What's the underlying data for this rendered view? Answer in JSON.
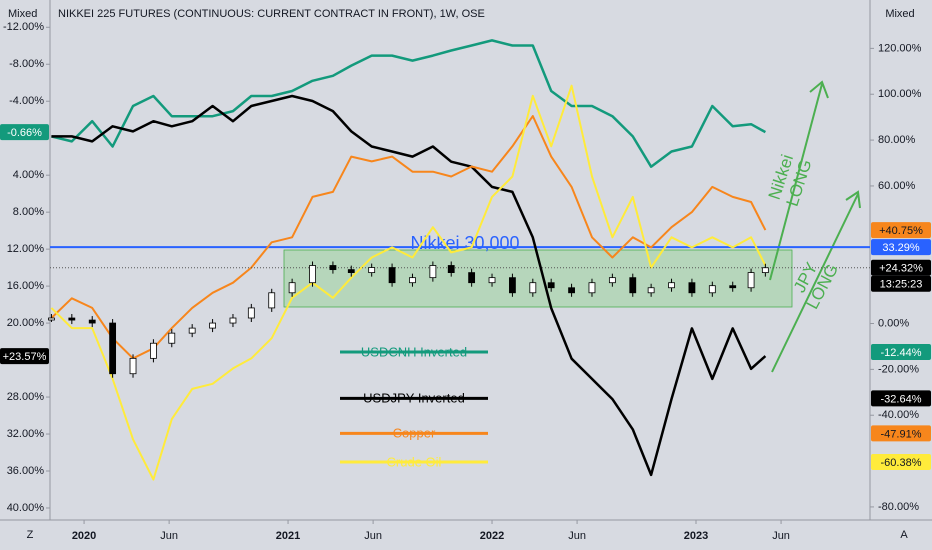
{
  "chart_data": {
    "type": "line",
    "title": "NIKKEI 225 FUTURES (CONTINUOUS: CURRENT CONTRACT IN FRONT), 1W, OSE",
    "left_axis_mode": "Mixed",
    "right_axis_mode": "Mixed",
    "corner_left": "Z",
    "corner_right": "A",
    "x": [
      2019.84,
      2019.94,
      2020.04,
      2020.14,
      2020.24,
      2020.34,
      2020.43,
      2020.53,
      2020.63,
      2020.73,
      2020.82,
      2020.92,
      2021.02,
      2021.12,
      2021.22,
      2021.31,
      2021.41,
      2021.51,
      2021.61,
      2021.71,
      2021.8,
      2021.9,
      2022.0,
      2022.1,
      2022.2,
      2022.29,
      2022.39,
      2022.49,
      2022.59,
      2022.69,
      2022.78,
      2022.88,
      2022.98,
      2023.08,
      2023.18,
      2023.27,
      2023.34
    ],
    "xlim": [
      2019.833,
      2023.853
    ],
    "xticks": [
      2020,
      {
        "value": 2020.417,
        "label": "Jun"
      },
      2021,
      {
        "value": 2021.417,
        "label": "Jun"
      },
      2022,
      {
        "value": 2022.417,
        "label": "Jun"
      },
      2023,
      {
        "value": 2023.417,
        "label": "Jun"
      }
    ],
    "ylim": [
      41.3,
      -14.95
    ],
    "yticks": [
      {
        "value": -12,
        "label": "-12.00%"
      },
      {
        "value": -8,
        "label": "-8.00%"
      },
      {
        "value": -4,
        "label": "-4.00%"
      },
      {
        "value": 4,
        "label": "4.00%"
      },
      {
        "value": 8,
        "label": "8.00%"
      },
      {
        "value": 12,
        "label": "12.00%"
      },
      {
        "value": 16,
        "label": "16.00%"
      },
      {
        "value": 20,
        "label": "20.00%"
      },
      {
        "value": 28,
        "label": "28.00%"
      },
      {
        "value": 32,
        "label": "32.00%"
      },
      {
        "value": 36,
        "label": "36.00%"
      },
      {
        "value": 40,
        "label": "40.00%"
      }
    ],
    "y2lim": [
      -85.7,
      141.1
    ],
    "y2ticks": [
      {
        "value": 120,
        "label": "120.00%"
      },
      {
        "value": 100,
        "label": "100.00%"
      },
      {
        "value": 80,
        "label": "80.00%"
      },
      {
        "value": 60,
        "label": "60.00%"
      },
      {
        "value": 0,
        "label": "0.00%"
      },
      {
        "value": -20,
        "label": "-20.00%"
      },
      {
        "value": -40,
        "label": "-40.00%"
      },
      {
        "value": -80,
        "label": "-80.00%"
      }
    ],
    "hline": {
      "value": 33.29,
      "label": "33.29%",
      "text": "Nikkei 30,000",
      "color": "#2962ff"
    },
    "series": [
      {
        "name": "USDCNH Inverted",
        "color": "#139a7c",
        "axis": "y",
        "end_label": "-0.66%",
        "legend": {
          "value": -12.44,
          "label": "-12.44%"
        },
        "values": [
          -0.2,
          0.35,
          -1.84,
          0.9,
          -3.48,
          -4.57,
          -2.38,
          -2.38,
          -2.38,
          -2.93,
          -4.57,
          -4.57,
          -5.11,
          -6.21,
          -6.75,
          -7.85,
          -8.94,
          -8.94,
          -8.39,
          -8.94,
          -9.49,
          -10.03,
          -10.58,
          -10.03,
          -10.03,
          -5.11,
          -3.48,
          -3.48,
          -2.38,
          -0.2,
          3.08,
          1.44,
          0.9,
          -3.48,
          -1.29,
          -1.51,
          -0.66
        ]
      },
      {
        "name": "USDJPY Inverted",
        "color": "#000000",
        "axis": "y",
        "end_label": "+23.57%",
        "legend": {
          "value": -32.64,
          "label": "-32.64%"
        },
        "values": [
          -0.2,
          -0.2,
          0.35,
          -1.29,
          -0.74,
          -1.84,
          -1.29,
          -1.84,
          -3.48,
          -1.84,
          -3.48,
          -4.02,
          -4.57,
          -4.02,
          -2.93,
          -0.74,
          0.9,
          1.44,
          1.99,
          0.9,
          2.54,
          3.08,
          5.27,
          5.81,
          10.73,
          18.38,
          23.85,
          26.04,
          28.22,
          31.5,
          36.42,
          28.22,
          20.57,
          26.04,
          20.57,
          24.94,
          23.57
        ]
      },
      {
        "name": "Copper",
        "color": "#f7861c",
        "axis": "y2",
        "end_label": "+40.75%",
        "legend": {
          "value": -47.91,
          "label": "-47.91%"
        },
        "values": [
          2.4,
          11.0,
          6.8,
          -6.4,
          -15.2,
          -10.8,
          -2.0,
          6.8,
          13.4,
          17.8,
          24.4,
          35.4,
          37.6,
          55.2,
          57.4,
          72.8,
          70.7,
          72.8,
          66.2,
          66.2,
          64.1,
          68.5,
          66.2,
          77.3,
          90.5,
          72.8,
          59.6,
          37.6,
          28.8,
          37.6,
          33.2,
          42.0,
          48.6,
          59.6,
          55.2,
          53.0,
          40.75
        ]
      },
      {
        "name": "Crude Oil",
        "color": "#ffeb3b",
        "axis": "y2",
        "legend": {
          "value": -60.38,
          "label": "-60.38%"
        },
        "values": [
          6.8,
          -2.0,
          -2.0,
          -24.1,
          -50.5,
          -68.1,
          -41.7,
          -28.5,
          -26.3,
          -19.6,
          -15.2,
          -6.4,
          11.2,
          17.8,
          11.2,
          20.0,
          28.8,
          33.2,
          28.8,
          42.0,
          31.0,
          33.2,
          55.2,
          64.1,
          99.3,
          77.3,
          103.7,
          64.1,
          37.6,
          55.2,
          24.4,
          37.6,
          33.2,
          37.6,
          33.2,
          37.6,
          25.3
        ]
      },
      {
        "type": "candle",
        "color": "#000000",
        "axis": "y2",
        "end_label": "+24.32%",
        "countdown": "13:25:23",
        "values": [
          2.4,
          1.5,
          0.2,
          -21.9,
          -15.2,
          -8.6,
          -4.2,
          -2.0,
          0.2,
          2.4,
          6.8,
          13.4,
          17.8,
          25.3,
          23.5,
          22.2,
          24.4,
          17.8,
          20.0,
          25.3,
          22.2,
          17.8,
          20.0,
          13.4,
          17.8,
          15.6,
          13.4,
          17.8,
          20.0,
          13.4,
          15.6,
          17.8,
          13.4,
          16.5,
          15.6,
          22.2,
          24.32
        ]
      }
    ],
    "annotations": [
      {
        "text": "Nikkei LONG",
        "color": "#4caf50"
      },
      {
        "text": "JPY LONG",
        "color": "#4caf50"
      }
    ]
  }
}
